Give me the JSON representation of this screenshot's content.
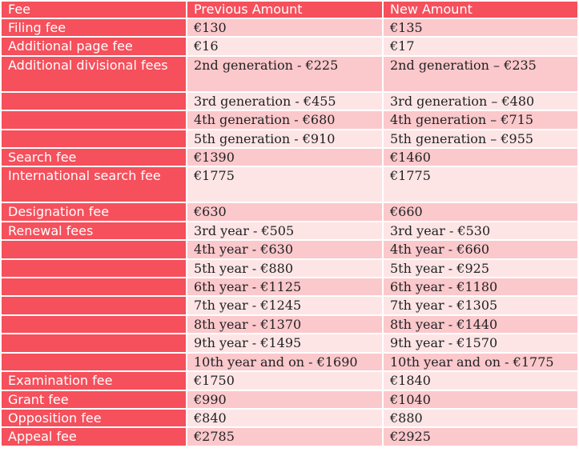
{
  "colors": {
    "header": "#f5505c",
    "row_dark": "#fbc8cc",
    "row_light": "#fde5e6"
  },
  "headers": [
    "Fee",
    "Previous Amount",
    "New Amount"
  ],
  "rows": [
    {
      "fee": "Filing fee",
      "previous": "€130",
      "new": "€135"
    },
    {
      "fee": "Additional page fee",
      "previous": "€16",
      "new": "€17"
    },
    {
      "fee": "Additional divisional fees",
      "previous": "2nd generation - €225",
      "new": "2nd generation – €235",
      "tall": true
    },
    {
      "fee": "",
      "previous": "3rd generation - €455",
      "new": "3rd generation – €480"
    },
    {
      "fee": "",
      "previous": "4th generation - €680",
      "new": "4th generation – €715"
    },
    {
      "fee": "",
      "previous": "5th generation - €910",
      "new": "5th generation – €955"
    },
    {
      "fee": "Search fee",
      "previous": "€1390",
      "new": "€1460"
    },
    {
      "fee": "International search fee",
      "previous": "€1775",
      "new": "€1775",
      "tall": true
    },
    {
      "fee": "Designation fee",
      "previous": "€630",
      "new": "€660"
    },
    {
      "fee": "Renewal fees",
      "previous": "3rd year - €505",
      "new": "3rd year - €530"
    },
    {
      "fee": "",
      "previous": "4th year - €630",
      "new": "4th year - €660"
    },
    {
      "fee": "",
      "previous": "5th year - €880",
      "new": "5th year - €925"
    },
    {
      "fee": "",
      "previous": "6th year - €1125",
      "new": "6th year - €1180"
    },
    {
      "fee": "",
      "previous": "7th year - €1245",
      "new": "7th year - €1305"
    },
    {
      "fee": "",
      "previous": "8th year - €1370",
      "new": "8th year - €1440"
    },
    {
      "fee": "",
      "previous": "9th year - €1495",
      "new": "9th year - €1570"
    },
    {
      "fee": "",
      "previous": "10th year and on - €1690",
      "new": "10th year and on - €1775"
    },
    {
      "fee": "Examination fee",
      "previous": "€1750",
      "new": "€1840"
    },
    {
      "fee": "Grant fee",
      "previous": "€990",
      "new": "€1040"
    },
    {
      "fee": "Opposition fee",
      "previous": "€840",
      "new": "€880"
    },
    {
      "fee": "Appeal fee",
      "previous": "€2785",
      "new": "€2925"
    }
  ]
}
